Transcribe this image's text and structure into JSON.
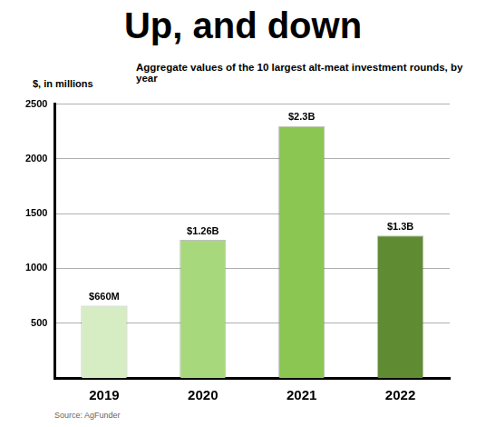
{
  "chart_data": {
    "type": "bar",
    "title": "Up, and down",
    "subtitle": "Aggregate values of the 10 largest alt-meat investment rounds, by year",
    "y_label": "$, in millions",
    "source": "Source: AgFunder",
    "categories": [
      "2019",
      "2020",
      "2021",
      "2022"
    ],
    "values": [
      660,
      1260,
      2300,
      1300
    ],
    "value_labels": [
      "$660M",
      "$1.26B",
      "$2.3B",
      "$1.3B"
    ],
    "colors": [
      "#d6edc3",
      "#a8d87c",
      "#8bc653",
      "#5f8b33"
    ],
    "ylim": [
      0,
      2500
    ],
    "yticks": [
      500,
      1000,
      1500,
      2000,
      2500
    ],
    "grid": true,
    "data_labels": true
  }
}
